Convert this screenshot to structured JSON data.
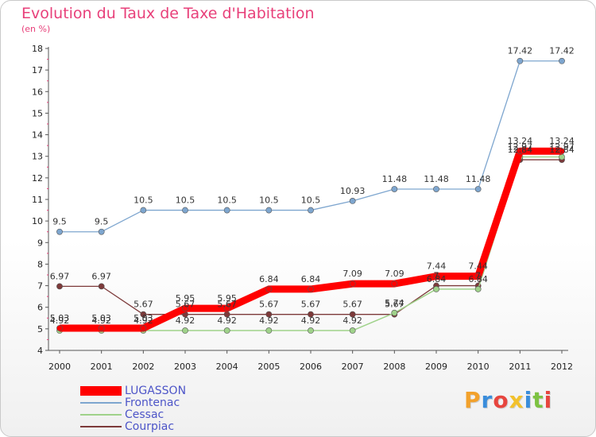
{
  "chart_data": {
    "type": "line",
    "title": "Evolution du Taux de Taxe d'Habitation",
    "subtitle": "(en %)",
    "x": [
      "2000",
      "2001",
      "2002",
      "2003",
      "2004",
      "2005",
      "2006",
      "2007",
      "2008",
      "2009",
      "2010",
      "2011",
      "2012"
    ],
    "ylim": [
      4,
      18
    ],
    "yticks": [
      4,
      5,
      6,
      7,
      8,
      9,
      10,
      11,
      12,
      13,
      14,
      15,
      16,
      17,
      18
    ],
    "grid": false,
    "legend_position": "bottom-left",
    "series": [
      {
        "name": "LUGASSON",
        "color": "#ff0000",
        "values": [
          5.03,
          5.03,
          5.03,
          5.95,
          5.95,
          6.84,
          6.84,
          7.09,
          7.09,
          7.44,
          7.44,
          13.24,
          13.24
        ]
      },
      {
        "name": "Frontenac",
        "color": "#7ea6cf",
        "values": [
          9.5,
          9.5,
          10.5,
          10.5,
          10.5,
          10.5,
          10.5,
          10.93,
          11.48,
          11.48,
          11.48,
          17.42,
          17.42
        ]
      },
      {
        "name": "Cessac",
        "color": "#9fd28a",
        "values": [
          4.92,
          4.92,
          4.92,
          4.92,
          4.92,
          4.92,
          4.92,
          4.92,
          5.74,
          6.84,
          6.84,
          12.97,
          12.97
        ]
      },
      {
        "name": "Courpiac",
        "color": "#7d3a3a",
        "values": [
          6.97,
          6.97,
          5.67,
          5.67,
          5.67,
          5.67,
          5.67,
          5.67,
          5.67,
          7.0,
          7.0,
          12.84,
          12.84
        ]
      }
    ]
  },
  "brand": {
    "letters": [
      "P",
      "r",
      "o",
      "x",
      "i",
      "t",
      "i"
    ],
    "colors": [
      "#f2a12c",
      "#3a8ddb",
      "#e7453e",
      "#f2c12c",
      "#3a8ddb",
      "#7dc242",
      "#e7453e"
    ]
  }
}
